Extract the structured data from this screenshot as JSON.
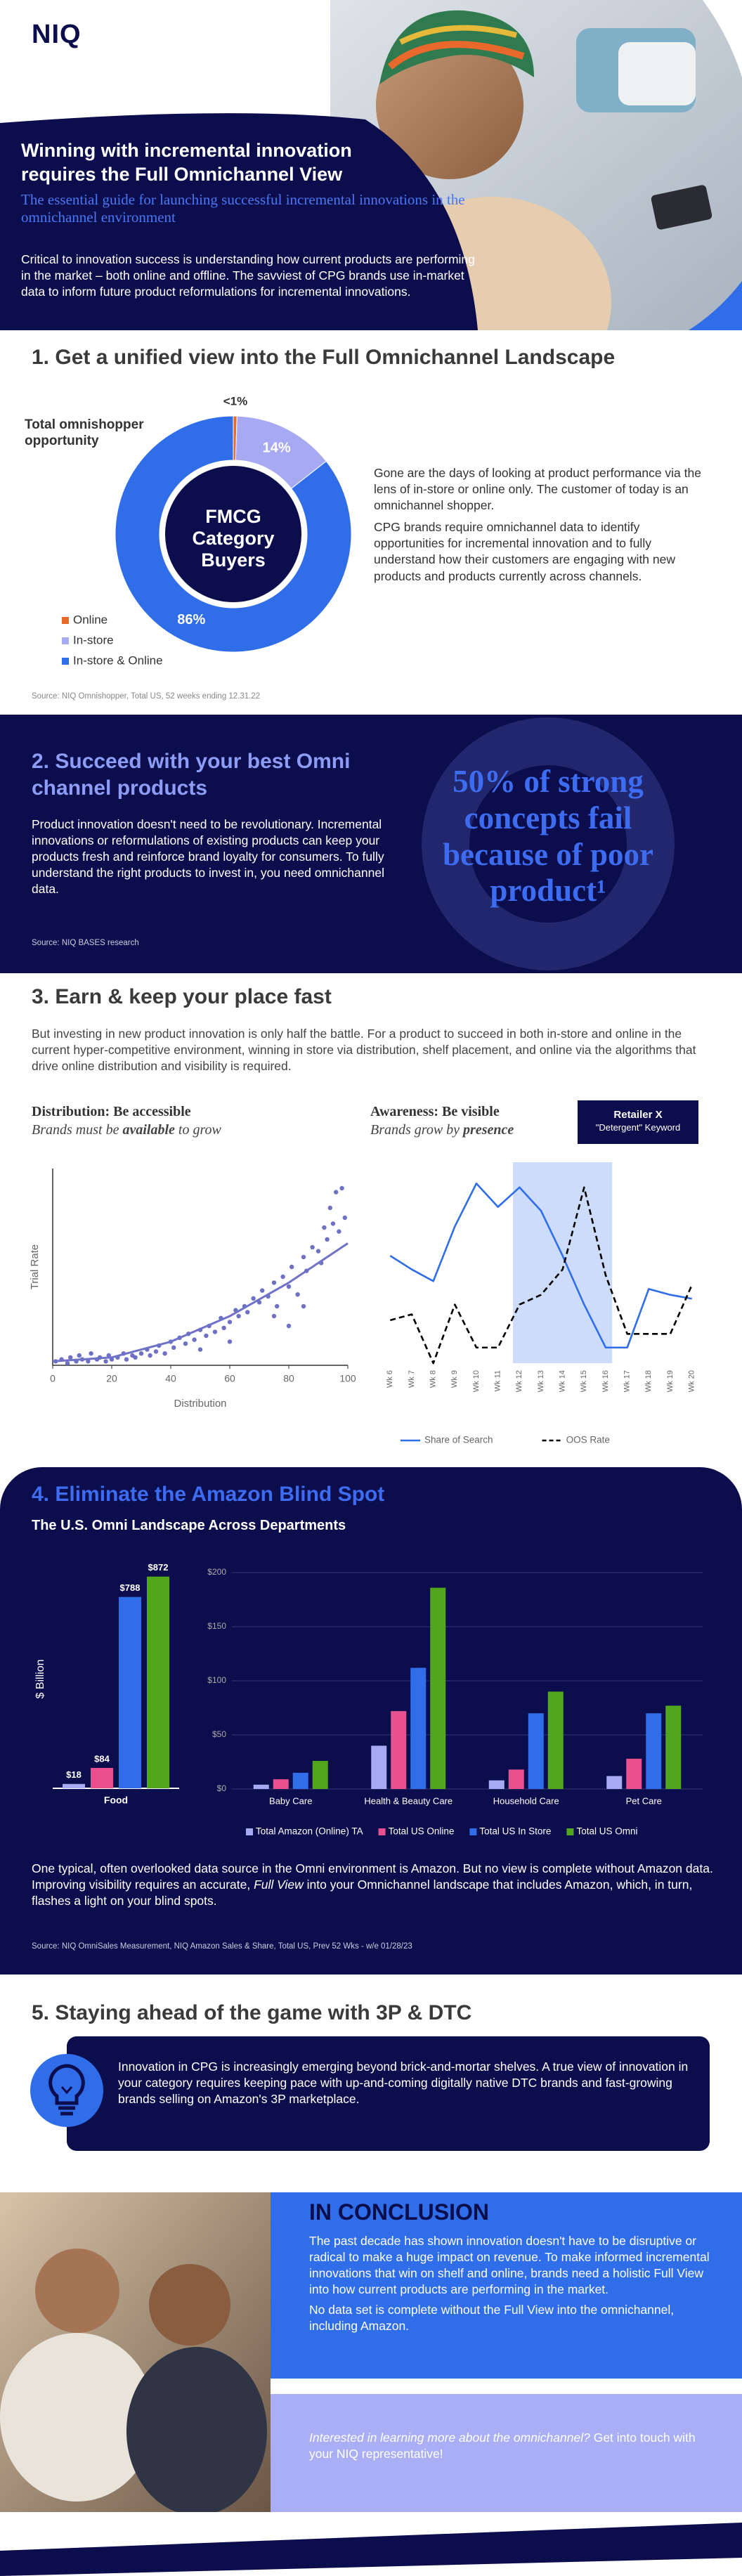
{
  "header": {
    "logo": "NIQ",
    "title": "Winning with incremental innovation requires the Full Omnichannel View",
    "subtitle": "The essential guide for launching successful incremental innovations in the omnichannel environment",
    "intro": "Critical to innovation success is understanding how current products are performing in the market – both online and offline. The savviest of CPG brands use in-market data to inform future product reformulations for incremental innovations."
  },
  "section1": {
    "title": "1. Get a unified view into the Full Omnichannel Landscape",
    "paragraphs": [
      "Gone are the days of looking at product performance via the lens of in-store or online only. The customer of today is an omnichannel shopper.",
      "CPG brands require omnichannel data to identify opportunities for incremental innovation and to fully understand how their customers are engaging with new products and products currently across channels."
    ],
    "source": "Source: NIQ Omnishopper, Total US, 52 weeks ending 12.31.22"
  },
  "section2": {
    "title": "2. Succeed with your best Omni channel products",
    "body": "Product innovation doesn't need to be revolutionary. Incremental innovations or reformulations of existing products can keep your products fresh and reinforce brand loyalty for consumers. To fully understand the right products to invest in, you need omnichannel data.",
    "source": "Source: NIQ BASES research",
    "callout": "50% of strong concepts fail because of poor product¹"
  },
  "section3": {
    "title": "3. Earn & keep your place fast",
    "body": "But investing in new product innovation is only half the battle. For a product to succeed in both in-store and online in the current hyper-competitive environment, winning in store via distribution, shelf placement, and online via the algorithms that drive online distribution and visibility is required.",
    "distribution_heading": "Distribution: Be accessible",
    "distribution_sub": [
      "Brands must be ",
      "available",
      " to grow"
    ],
    "awareness_heading": "Awareness: Be visible",
    "awareness_sub": [
      "Brands grow by ",
      "presence"
    ],
    "retailer": "Retailer X",
    "keyword": "\"Detergent\" Keyword"
  },
  "section4": {
    "title": "4. Eliminate the Amazon Blind Spot",
    "subtitle": "The U.S. Omni Landscape Across Departments",
    "body": [
      "One typical, often overlooked data source in the Omni environment is Amazon. But no view is complete without Amazon data. Improving visibility requires an accurate, ",
      "Full View",
      " into your Omnichannel landscape that includes Amazon, which, in turn, flashes a light on your blind spots."
    ],
    "source": "Source: NIQ OmniSales Measurement, NIQ Amazon Sales & Share, Total US, Prev 52 Wks - w/e 01/28/23"
  },
  "section5": {
    "title": "5. Staying ahead of the game with 3P & DTC",
    "body": "Innovation in CPG is increasingly emerging beyond brick-and-mortar shelves. A true view of innovation in your category requires keeping pace with up-and-coming digitally native DTC brands and fast-growing brands selling on Amazon's 3P marketplace."
  },
  "conclusion": {
    "title": "IN CONCLUSION",
    "paragraphs": [
      "The past decade has shown innovation doesn't have to be disruptive or radical to make a huge impact on revenue. To make informed incremental innovations that win on shelf and online, brands need a holistic Full View into how current products are performing in the market.",
      "No data set is complete without the Full View into the omnichannel, including Amazon."
    ],
    "cta": [
      "Interested in learning more about the omnichannel?",
      " Get into touch with your NIQ representative!"
    ]
  },
  "chart_data": [
    {
      "type": "pie",
      "annotation": "Total omnishopper opportunity",
      "center_label": "FMCG Category Buyers",
      "categories": [
        "Online",
        "In-store",
        "In-store & Online"
      ],
      "values": [
        0.5,
        14,
        86
      ],
      "value_labels": [
        "<1%",
        "14%",
        "86%"
      ],
      "colors": [
        "#e8692b",
        "#a7aaf2",
        "#2f6ee8"
      ]
    },
    {
      "type": "scatter",
      "xlabel": "Distribution",
      "ylabel": "Trial Rate",
      "xlim": [
        0,
        100
      ],
      "xticks": [
        0,
        20,
        40,
        60,
        80,
        100
      ],
      "ylim": [
        0,
        100
      ],
      "color": "#5558b8",
      "x": [
        1,
        3,
        5,
        6,
        8,
        9,
        10,
        12,
        13,
        15,
        16,
        18,
        19,
        20,
        22,
        24,
        25,
        27,
        28,
        30,
        32,
        33,
        35,
        36,
        38,
        40,
        41,
        43,
        45,
        46,
        48,
        50,
        52,
        53,
        55,
        57,
        58,
        60,
        62,
        63,
        65,
        66,
        68,
        70,
        71,
        73,
        75,
        76,
        78,
        80,
        81,
        83,
        85,
        86,
        88,
        90,
        91,
        92,
        93,
        94,
        95,
        96,
        97,
        98,
        99,
        75,
        80,
        85,
        60,
        50
      ],
      "y": [
        2,
        3,
        1,
        4,
        2,
        5,
        3,
        2,
        6,
        3,
        4,
        2,
        5,
        3,
        4,
        6,
        3,
        5,
        4,
        6,
        8,
        5,
        7,
        10,
        6,
        12,
        9,
        14,
        11,
        16,
        13,
        18,
        15,
        20,
        17,
        24,
        19,
        22,
        28,
        25,
        30,
        27,
        34,
        32,
        38,
        35,
        42,
        30,
        45,
        40,
        50,
        36,
        55,
        48,
        60,
        58,
        52,
        70,
        64,
        80,
        72,
        88,
        68,
        90,
        75,
        25,
        20,
        30,
        12,
        8
      ],
      "trend": {
        "color": "#6f72c8",
        "x": [
          0,
          20,
          40,
          60,
          80,
          100
        ],
        "y": [
          2,
          4,
          12,
          25,
          42,
          62
        ]
      }
    },
    {
      "type": "line",
      "categories": [
        "Wk 6",
        "Wk 7",
        "Wk 8",
        "Wk 9",
        "Wk 10",
        "Wk 11",
        "Wk 12",
        "Wk 13",
        "Wk 14",
        "Wk 15",
        "Wk 16",
        "Wk 17",
        "Wk 18",
        "Wk 19",
        "Wk 20"
      ],
      "ylim": [
        0,
        100
      ],
      "highlight": [
        "Wk 12",
        "Wk 16"
      ],
      "highlight_color": "#cddcfb",
      "series": [
        {
          "name": "Share of Search",
          "color": "#2f6ee8",
          "dash": false,
          "values": [
            55,
            48,
            42,
            70,
            92,
            80,
            90,
            78,
            55,
            30,
            8,
            8,
            38,
            35,
            33
          ]
        },
        {
          "name": "OOS Rate",
          "color": "#000000",
          "dash": true,
          "values": [
            22,
            25,
            0,
            30,
            8,
            8,
            30,
            35,
            48,
            90,
            45,
            15,
            15,
            15,
            40
          ]
        }
      ]
    },
    {
      "type": "bar",
      "ylabel": "$ Billion",
      "categories": [
        "Food"
      ],
      "ylim": [
        0,
        900
      ],
      "series": [
        {
          "color": "#a7aaf2",
          "values": [
            18
          ],
          "value_labels": [
            "$18"
          ]
        },
        {
          "color": "#e8508f",
          "values": [
            84
          ],
          "value_labels": [
            "$84"
          ]
        },
        {
          "color": "#2f6ee8",
          "values": [
            788
          ],
          "value_labels": [
            "$788"
          ]
        },
        {
          "color": "#52a61c",
          "values": [
            872
          ],
          "value_labels": [
            "$872"
          ]
        }
      ]
    },
    {
      "type": "bar",
      "categories": [
        "Baby Care",
        "Health & Beauty Care",
        "Household Care",
        "Pet Care"
      ],
      "ylim": [
        0,
        200
      ],
      "grid": true,
      "yticks": [
        {
          "value": 0,
          "label": "$0"
        },
        {
          "value": 50,
          "label": "$50"
        },
        {
          "value": 100,
          "label": "$100"
        },
        {
          "value": 150,
          "label": "$150"
        },
        {
          "value": 200,
          "label": "$200"
        }
      ],
      "series": [
        {
          "name": "Total Amazon (Online) TA",
          "color": "#a7aaf2",
          "values": [
            4,
            40,
            8,
            12
          ]
        },
        {
          "name": "Total US Online",
          "color": "#e8508f",
          "values": [
            9,
            72,
            18,
            28
          ]
        },
        {
          "name": "Total US In Store",
          "color": "#2f6ee8",
          "values": [
            15,
            112,
            70,
            70
          ]
        },
        {
          "name": "Total US Omni",
          "color": "#52a61c",
          "values": [
            26,
            186,
            90,
            77
          ]
        }
      ]
    }
  ]
}
